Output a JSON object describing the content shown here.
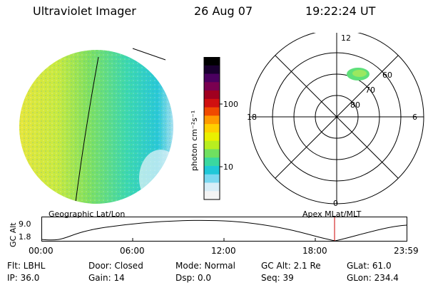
{
  "header": {
    "instrument": "Ultraviolet Imager",
    "date": "26 Aug 07",
    "time": "19:22:24 UT"
  },
  "colorbar": {
    "label": "photon cm⁻²s⁻¹",
    "ticks": [
      "100",
      "10"
    ],
    "colors": [
      "#000000",
      "#1a0030",
      "#4b0060",
      "#7a0050",
      "#a00020",
      "#d01010",
      "#f04a00",
      "#ff9a00",
      "#ffd000",
      "#eaf000",
      "#b8ee20",
      "#70e060",
      "#3ad8a0",
      "#20c8d8",
      "#7ad8f0",
      "#d8eef8",
      "#f4f4f4"
    ]
  },
  "polar_plot": {
    "mlt_labels": {
      "top": "12",
      "left": "18",
      "right": "6",
      "bottom": "0"
    },
    "lat_labels": [
      "60",
      "70",
      "80"
    ]
  },
  "timeline": {
    "axis_label": "GC Alt",
    "y_ticks": [
      "9.0",
      "1.8"
    ],
    "left_title": "Geographic Lat/Lon",
    "right_title": "Apex MLat/MLT",
    "x_ticks": [
      "00:00",
      "06:00",
      "12:00",
      "18:00",
      "23:59"
    ]
  },
  "info": {
    "row1": [
      "Flt: LBHL",
      "Door: Closed",
      "Mode: Normal",
      "GC Alt: 2.1 Re",
      "GLat:  61.0"
    ],
    "row2": [
      "IP: 36.0",
      "Gain: 14",
      "Dsp:   0.0",
      "Seq: 39",
      "GLon: 234.4"
    ]
  },
  "colors": {
    "current_time_marker": "#cc0000",
    "disk_dayside": "#e8e83a",
    "disk_mid": "#7ee05a",
    "disk_nightside": "#2ed0c8",
    "aurora_blob": "#5ee07a"
  }
}
